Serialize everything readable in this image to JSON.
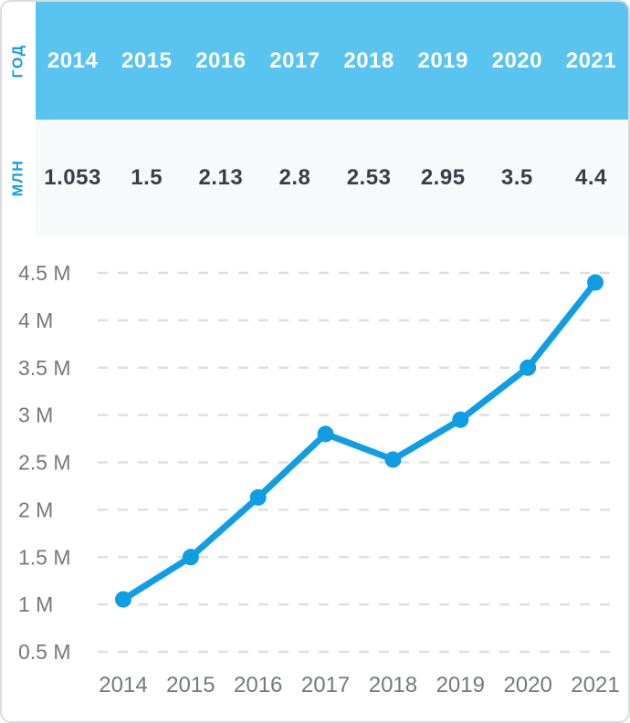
{
  "table": {
    "year_row": {
      "label": "ГОД",
      "cells": [
        "2014",
        "2015",
        "2016",
        "2017",
        "2018",
        "2019",
        "2020",
        "2021"
      ]
    },
    "mln_row": {
      "label": "МЛН",
      "cells": [
        "1.053",
        "1.5",
        "2.13",
        "2.8",
        "2.53",
        "2.95",
        "3.5",
        "4.4"
      ]
    }
  },
  "chart_data": {
    "type": "line",
    "title": "",
    "xlabel": "",
    "ylabel": "",
    "x": [
      "2014",
      "2015",
      "2016",
      "2017",
      "2018",
      "2019",
      "2020",
      "2021"
    ],
    "series": [
      {
        "name": "МЛН",
        "values": [
          1.053,
          1.5,
          2.13,
          2.8,
          2.53,
          2.95,
          3.5,
          4.4
        ]
      }
    ],
    "ylim": [
      0.5,
      4.5
    ],
    "yticks": [
      {
        "value": 0.5,
        "label": "0.5 M"
      },
      {
        "value": 1.0,
        "label": "1 M"
      },
      {
        "value": 1.5,
        "label": "1.5 M"
      },
      {
        "value": 2.0,
        "label": "2 M"
      },
      {
        "value": 2.5,
        "label": "2.5 M"
      },
      {
        "value": 3.0,
        "label": "3 M"
      },
      {
        "value": 3.5,
        "label": "3.5 M"
      },
      {
        "value": 4.0,
        "label": "4 M"
      },
      {
        "value": 4.5,
        "label": "4.5 M"
      }
    ],
    "grid": "horizontal-dashed",
    "legend": "none",
    "marker": "circle"
  },
  "colors": {
    "header_band": "#59c4f0",
    "accent_blue": "#149ce2",
    "line": "#0f9de4",
    "values_row_bg": "#f8f9fb",
    "axis_label": "#75797d",
    "value_text": "#3a3e43",
    "grid_line": "#dfdfdf",
    "card_border": "#d9dbdd",
    "year_text": "#ffffff"
  }
}
